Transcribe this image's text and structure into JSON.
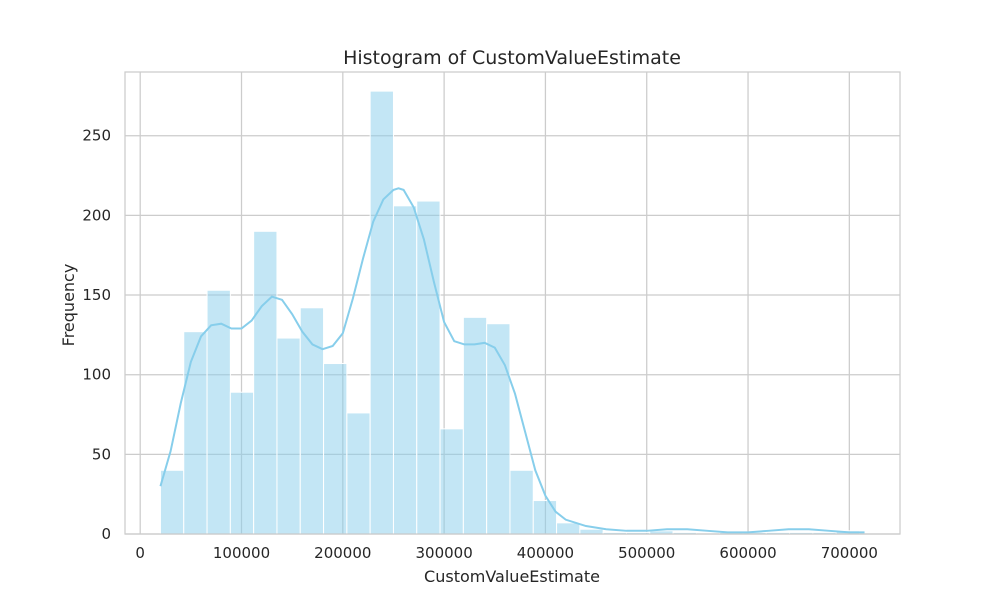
{
  "chart_data": {
    "type": "bar",
    "subtype": "histogram_with_kde",
    "title": "Histogram of CustomValueEstimate",
    "xlabel": "CustomValueEstimate",
    "ylabel": "Frequency",
    "xlim": [
      -15000,
      750000
    ],
    "ylim": [
      0,
      290
    ],
    "x_ticks": [
      0,
      100000,
      200000,
      300000,
      400000,
      500000,
      600000,
      700000
    ],
    "y_ticks": [
      0,
      50,
      100,
      150,
      200,
      250
    ],
    "grid": true,
    "colors": {
      "bar_fill": "#87CEEB",
      "bar_opacity": 0.5,
      "bar_edge": "#ffffff",
      "kde_line": "#87CEEB",
      "grid": "#cccccc",
      "spine": "#cccccc"
    },
    "bin_width": 23000,
    "bins": [
      {
        "x0": 20000,
        "count": 40
      },
      {
        "x0": 43000,
        "count": 127
      },
      {
        "x0": 66000,
        "count": 153
      },
      {
        "x0": 89000,
        "count": 89
      },
      {
        "x0": 112000,
        "count": 190
      },
      {
        "x0": 135000,
        "count": 123
      },
      {
        "x0": 158000,
        "count": 142
      },
      {
        "x0": 181000,
        "count": 107
      },
      {
        "x0": 204000,
        "count": 76
      },
      {
        "x0": 227000,
        "count": 278
      },
      {
        "x0": 250000,
        "count": 206
      },
      {
        "x0": 273000,
        "count": 209
      },
      {
        "x0": 296000,
        "count": 66
      },
      {
        "x0": 319000,
        "count": 136
      },
      {
        "x0": 342000,
        "count": 132
      },
      {
        "x0": 365000,
        "count": 40
      },
      {
        "x0": 388000,
        "count": 21
      },
      {
        "x0": 411000,
        "count": 7
      },
      {
        "x0": 434000,
        "count": 3
      },
      {
        "x0": 457000,
        "count": 1
      },
      {
        "x0": 480000,
        "count": 1
      },
      {
        "x0": 503000,
        "count": 2
      },
      {
        "x0": 526000,
        "count": 1
      },
      {
        "x0": 549000,
        "count": 0
      },
      {
        "x0": 572000,
        "count": 1
      },
      {
        "x0": 595000,
        "count": 1
      },
      {
        "x0": 618000,
        "count": 1
      },
      {
        "x0": 641000,
        "count": 1
      },
      {
        "x0": 664000,
        "count": 1
      },
      {
        "x0": 687000,
        "count": 2
      }
    ],
    "kde": {
      "x": [
        20000,
        30000,
        40000,
        50000,
        60000,
        70000,
        80000,
        90000,
        100000,
        110000,
        120000,
        130000,
        140000,
        150000,
        160000,
        170000,
        180000,
        190000,
        200000,
        210000,
        220000,
        230000,
        240000,
        250000,
        255000,
        260000,
        270000,
        280000,
        290000,
        300000,
        310000,
        320000,
        330000,
        340000,
        350000,
        360000,
        370000,
        380000,
        390000,
        400000,
        410000,
        420000,
        440000,
        460000,
        480000,
        500000,
        520000,
        540000,
        560000,
        580000,
        600000,
        620000,
        640000,
        660000,
        680000,
        700000,
        715000
      ],
      "y": [
        30,
        52,
        82,
        108,
        124,
        131,
        132,
        129,
        129,
        134,
        143,
        149,
        147,
        138,
        127,
        119,
        116,
        118,
        126,
        148,
        173,
        196,
        210,
        216,
        217,
        216,
        205,
        185,
        158,
        133,
        121,
        119,
        119,
        120,
        117,
        106,
        88,
        64,
        40,
        24,
        14,
        9,
        5,
        3,
        2,
        2,
        3,
        3,
        2,
        1,
        1,
        2,
        3,
        3,
        2,
        1,
        1
      ]
    }
  }
}
